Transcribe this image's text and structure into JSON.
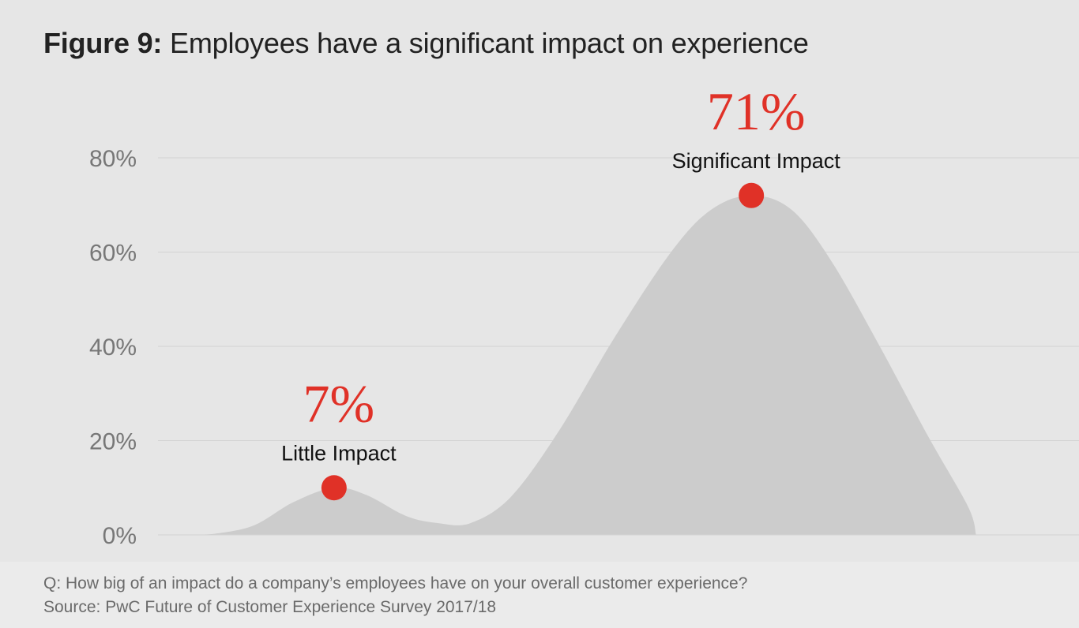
{
  "title": {
    "bold": "Figure 9:",
    "text": "Employees have a significant impact on experience"
  },
  "colors": {
    "accent": "#e03127",
    "area": "#cccccc",
    "grid": "#d3d3d3",
    "tick": "#777777"
  },
  "chart_data": {
    "type": "area",
    "title": "Figure 9: Employees have a significant impact on experience",
    "xlabel": "",
    "ylabel": "",
    "ylim": [
      0,
      80
    ],
    "yticks": [
      0,
      20,
      40,
      60,
      80
    ],
    "ytick_labels": [
      "0%",
      "20%",
      "40%",
      "60%",
      "80%"
    ],
    "grid": true,
    "x_range": [
      0,
      100
    ],
    "points": [
      {
        "label": "Little Impact",
        "x": 18,
        "value": 7,
        "value_label": "7%"
      },
      {
        "label": "Significant Impact",
        "x": 70,
        "value": 71,
        "value_label": "71%"
      }
    ],
    "curve": [
      {
        "x": 0,
        "y": 0
      },
      {
        "x": 3,
        "y": 0.2
      },
      {
        "x": 8,
        "y": 2
      },
      {
        "x": 13,
        "y": 7
      },
      {
        "x": 18,
        "y": 10
      },
      {
        "x": 22,
        "y": 8.5
      },
      {
        "x": 27,
        "y": 4
      },
      {
        "x": 31,
        "y": 2.5
      },
      {
        "x": 35,
        "y": 2.5
      },
      {
        "x": 40,
        "y": 8
      },
      {
        "x": 46,
        "y": 22
      },
      {
        "x": 53,
        "y": 42
      },
      {
        "x": 60,
        "y": 60
      },
      {
        "x": 65,
        "y": 69
      },
      {
        "x": 70,
        "y": 72
      },
      {
        "x": 75,
        "y": 69
      },
      {
        "x": 80,
        "y": 58
      },
      {
        "x": 86,
        "y": 40
      },
      {
        "x": 92,
        "y": 21
      },
      {
        "x": 97,
        "y": 6
      },
      {
        "x": 98,
        "y": 0
      }
    ]
  },
  "footer": {
    "question": "Q: How big of an impact do a company’s employees have on your overall customer experience?",
    "source": "Source: PwC Future of Customer Experience Survey 2017/18"
  }
}
